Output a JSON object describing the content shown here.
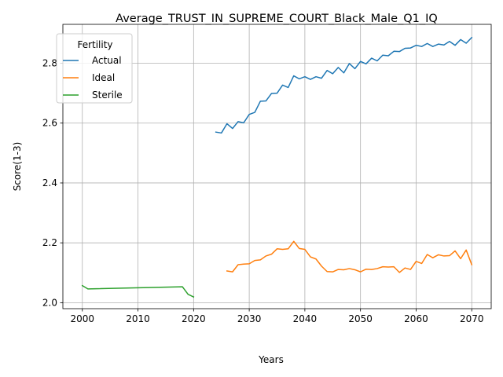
{
  "chart_data": {
    "type": "line",
    "title": "Average_TRUST_IN_SUPREME_COURT_Black_Male_Q1_IQ",
    "xlabel": "Years",
    "ylabel": "Score(1-3)",
    "xlim": [
      1996.5,
      2073.5
    ],
    "ylim": [
      1.98,
      2.93
    ],
    "xticks": [
      2000,
      2010,
      2020,
      2030,
      2040,
      2050,
      2060,
      2070
    ],
    "yticks": [
      2.0,
      2.2,
      2.4,
      2.6,
      2.8
    ],
    "ytick_labels": [
      "2.0",
      "2.2",
      "2.4",
      "2.6",
      "2.8"
    ],
    "grid": true,
    "legend": {
      "title": "Fertility",
      "placement": "top-left"
    },
    "series": [
      {
        "name": "Actual",
        "color": "#1f77b4",
        "x": [
          2024,
          2025,
          2026,
          2027,
          2028,
          2029,
          2030,
          2031,
          2032,
          2033,
          2034,
          2035,
          2036,
          2037,
          2038,
          2039,
          2040,
          2041,
          2042,
          2043,
          2044,
          2045,
          2046,
          2047,
          2048,
          2049,
          2050,
          2051,
          2052,
          2053,
          2054,
          2055,
          2056,
          2057,
          2058,
          2059,
          2060,
          2061,
          2062,
          2063,
          2064,
          2065,
          2066,
          2067,
          2068,
          2069,
          2070
        ],
        "y": [
          2.57,
          2.567,
          2.598,
          2.582,
          2.605,
          2.601,
          2.629,
          2.636,
          2.673,
          2.674,
          2.699,
          2.7,
          2.727,
          2.719,
          2.758,
          2.748,
          2.755,
          2.746,
          2.755,
          2.75,
          2.776,
          2.765,
          2.786,
          2.768,
          2.799,
          2.782,
          2.806,
          2.798,
          2.817,
          2.808,
          2.827,
          2.825,
          2.84,
          2.839,
          2.85,
          2.851,
          2.86,
          2.856,
          2.866,
          2.856,
          2.864,
          2.861,
          2.873,
          2.86,
          2.879,
          2.867,
          2.886
        ]
      },
      {
        "name": "Ideal",
        "color": "#ff7f0e",
        "x": [
          2026,
          2027,
          2028,
          2029,
          2030,
          2031,
          2032,
          2033,
          2034,
          2035,
          2036,
          2037,
          2038,
          2039,
          2040,
          2041,
          2042,
          2043,
          2044,
          2045,
          2046,
          2047,
          2048,
          2049,
          2050,
          2051,
          2052,
          2053,
          2054,
          2055,
          2056,
          2057,
          2058,
          2059,
          2060,
          2061,
          2062,
          2063,
          2064,
          2065,
          2066,
          2067,
          2068,
          2069,
          2070
        ],
        "y": [
          2.106,
          2.103,
          2.127,
          2.129,
          2.13,
          2.141,
          2.143,
          2.156,
          2.162,
          2.18,
          2.178,
          2.18,
          2.205,
          2.181,
          2.178,
          2.153,
          2.146,
          2.122,
          2.104,
          2.103,
          2.111,
          2.11,
          2.114,
          2.11,
          2.103,
          2.112,
          2.111,
          2.114,
          2.12,
          2.119,
          2.12,
          2.101,
          2.116,
          2.111,
          2.138,
          2.131,
          2.161,
          2.15,
          2.16,
          2.156,
          2.157,
          2.173,
          2.147,
          2.176,
          2.127
        ]
      },
      {
        "name": "Sterile",
        "color": "#2ca02c",
        "x": [
          2000,
          2001,
          2018,
          2019,
          2020
        ],
        "y": [
          2.057,
          2.046,
          2.053,
          2.028,
          2.019
        ]
      }
    ]
  }
}
